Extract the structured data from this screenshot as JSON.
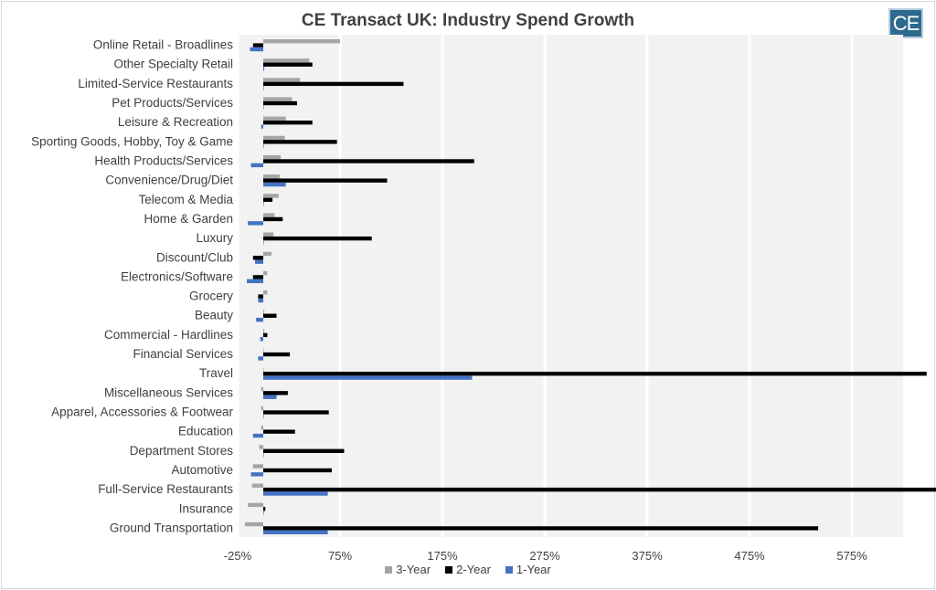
{
  "chart_data": {
    "type": "bar",
    "orientation": "horizontal",
    "title": "CE Transact UK: Industry Spend Growth",
    "categories": [
      "Online Retail - Broadlines",
      "Other Specialty Retail",
      "Limited-Service Restaurants",
      "Pet Products/Services",
      "Leisure & Recreation",
      "Sporting Goods, Hobby, Toy & Game",
      "Health Products/Services",
      "Convenience/Drug/Diet",
      "Telecom & Media",
      "Home & Garden",
      "Luxury",
      "Discount/Club",
      "Electronics/Software",
      "Grocery",
      "Beauty",
      "Commercial - Hardlines",
      "Financial Services",
      "Travel",
      "Miscellaneous Services",
      "Apparel, Accessories & Footwear",
      "Education",
      "Department Stores",
      "Automotive",
      "Full-Service Restaurants",
      "Insurance",
      "Ground Transportation"
    ],
    "series": [
      {
        "name": "3-Year",
        "color": "#a5a5a5",
        "values": [
          75,
          45,
          36,
          28,
          22,
          21,
          17,
          16,
          15,
          11,
          10,
          8,
          4,
          4,
          1,
          1,
          0,
          0,
          -2,
          -2,
          -2,
          -4,
          -10,
          -11,
          -15,
          -18
        ]
      },
      {
        "name": "2-Year",
        "color": "#000000",
        "values": [
          -10,
          48,
          137,
          33,
          48,
          72,
          206,
          121,
          9,
          19,
          106,
          -10,
          -10,
          -5,
          13,
          4,
          26,
          648,
          24,
          64,
          31,
          79,
          67,
          658,
          2,
          542
        ]
      },
      {
        "name": "1-Year",
        "color": "#4472c4",
        "values": [
          -13,
          1,
          0,
          0,
          -2,
          0,
          -12,
          22,
          0,
          -15,
          0,
          -8,
          -16,
          -5,
          -7,
          -3,
          -5,
          204,
          13,
          0,
          -10,
          0,
          -12,
          63,
          0,
          63
        ]
      }
    ],
    "xlim": [
      -25,
      625
    ],
    "x_ticks": [
      -25,
      75,
      175,
      275,
      375,
      475,
      575
    ],
    "x_tick_labels": [
      "-25%",
      "75%",
      "175%",
      "275%",
      "375%",
      "475%",
      "575%"
    ],
    "grid": true,
    "legend_position": "bottom",
    "background_color": "#f2f2f2"
  },
  "logo_text": "CE"
}
